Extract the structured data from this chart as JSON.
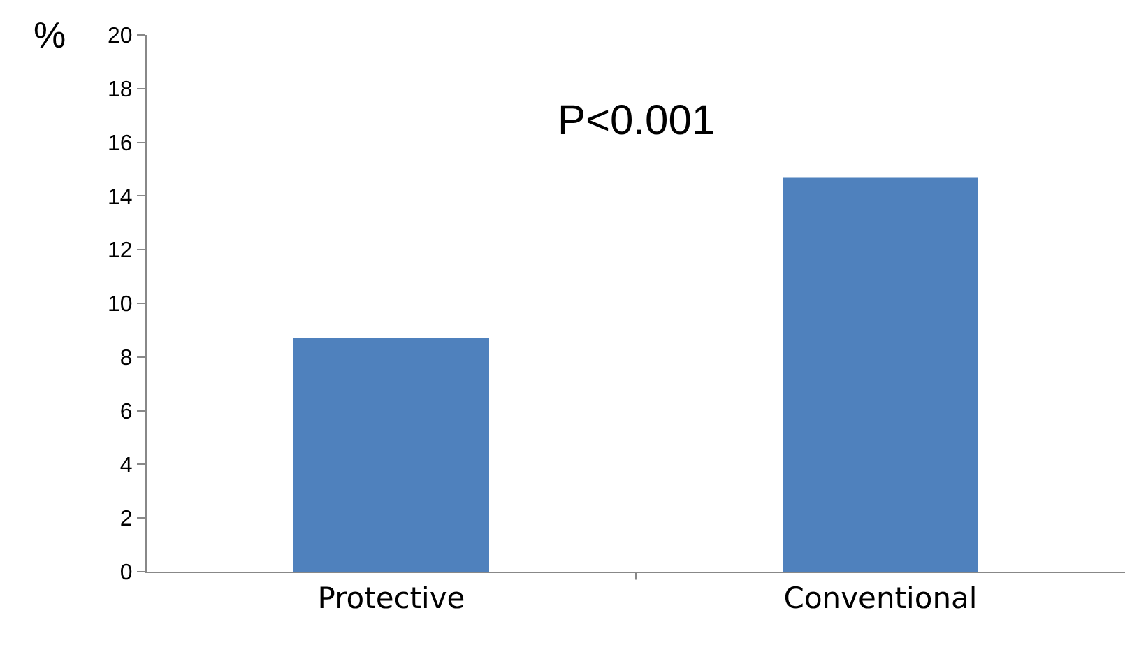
{
  "chart_data": {
    "type": "bar",
    "ylabel": "%",
    "categories": [
      "Protective",
      "Conventional"
    ],
    "values": [
      8.7,
      14.7
    ],
    "color": "#4f81bd",
    "ylim": [
      0,
      20
    ],
    "yticks": [
      0,
      2,
      4,
      6,
      8,
      10,
      12,
      14,
      16,
      18,
      20
    ],
    "grid": false,
    "legend": false,
    "annotations": [
      "P<0.001"
    ]
  }
}
